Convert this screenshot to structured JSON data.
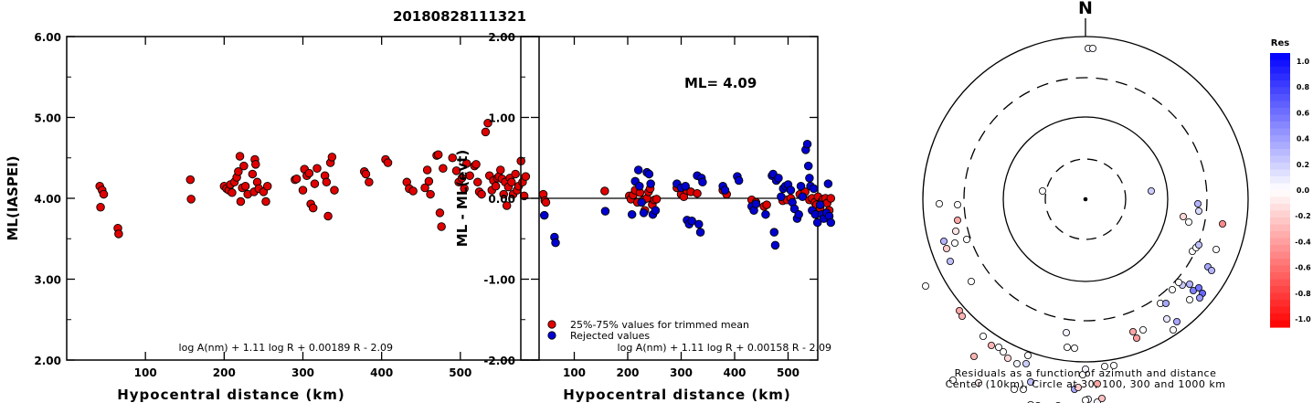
{
  "event_title": "20180828111321",
  "chart_data": [
    {
      "type": "scatter",
      "name": "magnitude-vs-distance",
      "xlabel": "Hypocentral distance (km)",
      "ylabel": "ML(IASPEI)",
      "xlim": [
        0,
        600
      ],
      "ylim": [
        2.0,
        6.0
      ],
      "xticks": [
        100,
        200,
        300,
        400,
        500
      ],
      "ytick_labels": [
        "2.00",
        "3.00",
        "4.00",
        "5.00",
        "6.00"
      ],
      "yticks": [
        2,
        3,
        4,
        5,
        6
      ],
      "formula": "log A(nm) + 1.11 log R + 0.00189 R - 2.09",
      "marker_color": "#e00000",
      "points": [
        [
          42,
          4.15
        ],
        [
          43,
          3.89
        ],
        [
          45,
          4.1
        ],
        [
          47,
          4.05
        ],
        [
          65,
          3.63
        ],
        [
          66,
          3.56
        ],
        [
          157,
          4.23
        ],
        [
          158,
          3.99
        ],
        [
          200,
          4.15
        ],
        [
          203,
          4.12
        ],
        [
          206,
          4.1
        ],
        [
          208,
          4.17
        ],
        [
          210,
          4.07
        ],
        [
          213,
          4.2
        ],
        [
          216,
          4.26
        ],
        [
          218,
          4.33
        ],
        [
          220,
          4.52
        ],
        [
          221,
          3.96
        ],
        [
          223,
          4.13
        ],
        [
          225,
          4.4
        ],
        [
          227,
          4.15
        ],
        [
          230,
          4.05
        ],
        [
          236,
          4.3
        ],
        [
          238,
          4.08
        ],
        [
          239,
          4.48
        ],
        [
          240,
          4.42
        ],
        [
          242,
          4.2
        ],
        [
          244,
          4.12
        ],
        [
          250,
          4.08
        ],
        [
          253,
          3.96
        ],
        [
          255,
          4.15
        ],
        [
          290,
          4.23
        ],
        [
          292,
          4.24
        ],
        [
          300,
          4.1
        ],
        [
          302,
          4.36
        ],
        [
          305,
          4.28
        ],
        [
          308,
          4.31
        ],
        [
          310,
          3.93
        ],
        [
          313,
          3.88
        ],
        [
          315,
          4.18
        ],
        [
          318,
          4.37
        ],
        [
          328,
          4.28
        ],
        [
          330,
          4.2
        ],
        [
          332,
          3.78
        ],
        [
          335,
          4.44
        ],
        [
          337,
          4.51
        ],
        [
          340,
          4.1
        ],
        [
          378,
          4.33
        ],
        [
          380,
          4.3
        ],
        [
          384,
          4.2
        ],
        [
          405,
          4.48
        ],
        [
          408,
          4.44
        ],
        [
          432,
          4.2
        ],
        [
          435,
          4.12
        ],
        [
          440,
          4.09
        ],
        [
          455,
          4.13
        ],
        [
          458,
          4.35
        ],
        [
          460,
          4.21
        ],
        [
          462,
          4.05
        ],
        [
          470,
          4.53
        ],
        [
          472,
          4.54
        ],
        [
          474,
          3.82
        ],
        [
          476,
          3.65
        ],
        [
          478,
          4.37
        ],
        [
          490,
          4.5
        ],
        [
          495,
          4.34
        ],
        [
          498,
          4.2
        ],
        [
          502,
          4.25
        ],
        [
          505,
          4.12
        ],
        [
          508,
          4.43
        ],
        [
          512,
          4.28
        ],
        [
          518,
          4.4
        ],
        [
          520,
          4.42
        ],
        [
          522,
          4.2
        ],
        [
          524,
          4.08
        ],
        [
          527,
          4.05
        ],
        [
          532,
          4.82
        ],
        [
          535,
          4.93
        ],
        [
          537,
          4.28
        ],
        [
          540,
          4.1
        ],
        [
          542,
          4.22
        ],
        [
          545,
          4.15
        ],
        [
          547,
          4.25
        ],
        [
          549,
          4.27
        ],
        [
          551,
          4.35
        ],
        [
          553,
          4.24
        ],
        [
          555,
          4.05
        ],
        [
          557,
          4.2
        ],
        [
          559,
          3.91
        ],
        [
          561,
          4.14
        ],
        [
          563,
          4.25
        ],
        [
          565,
          4.2
        ],
        [
          567,
          4.05
        ],
        [
          570,
          4.3
        ],
        [
          572,
          4.1
        ],
        [
          574,
          4.15
        ],
        [
          577,
          4.46
        ],
        [
          579,
          4.2
        ],
        [
          581,
          4.03
        ],
        [
          583,
          4.27
        ]
      ]
    },
    {
      "type": "scatter",
      "name": "residual-vs-distance",
      "xlabel": "Hypocentral distance (km)",
      "ylabel": "ML - ML(evt)",
      "xlim": [
        0,
        600
      ],
      "ylim": [
        -2.0,
        2.0
      ],
      "xticks": [
        100,
        200,
        300,
        400,
        500
      ],
      "yticks": [
        -2,
        -1,
        0,
        1,
        2
      ],
      "ytick_labels": [
        "-2.00",
        "-1.00",
        "0.00",
        "1.00",
        "2.00"
      ],
      "ml_label": "ML= 4.09",
      "legend": [
        "25%-75% values for trimmed mean",
        "Rejected values"
      ],
      "legend_colors": [
        "#e00000",
        "#0000d0"
      ],
      "formula": "log A(nm) + 1.11 log R + 0.00158 R - 2.09",
      "used_points": [
        [
          42,
          0.05
        ],
        [
          45,
          -0.03
        ],
        [
          47,
          -0.05
        ],
        [
          157,
          0.09
        ],
        [
          203,
          0.03
        ],
        [
          206,
          -0.01
        ],
        [
          210,
          0.04
        ],
        [
          214,
          0.1
        ],
        [
          218,
          -0.05
        ],
        [
          223,
          0.07
        ],
        [
          230,
          -0.02
        ],
        [
          232,
          -0.15
        ],
        [
          236,
          0.0
        ],
        [
          239,
          0.08
        ],
        [
          242,
          0.12
        ],
        [
          246,
          -0.08
        ],
        [
          250,
          -0.02
        ],
        [
          254,
          -0.01
        ],
        [
          292,
          0.13
        ],
        [
          300,
          0.05
        ],
        [
          305,
          0.02
        ],
        [
          310,
          0.1
        ],
        [
          318,
          0.08
        ],
        [
          330,
          0.06
        ],
        [
          378,
          0.1
        ],
        [
          385,
          0.05
        ],
        [
          432,
          -0.02
        ],
        [
          440,
          -0.05
        ],
        [
          455,
          -0.1
        ],
        [
          460,
          -0.08
        ],
        [
          490,
          -0.03
        ],
        [
          498,
          -0.02
        ],
        [
          505,
          0.0
        ],
        [
          522,
          0.05
        ],
        [
          532,
          0.08
        ],
        [
          540,
          -0.02
        ],
        [
          545,
          0.0
        ],
        [
          550,
          -0.05
        ],
        [
          553,
          -0.08
        ],
        [
          556,
          0.02
        ],
        [
          560,
          -0.12
        ],
        [
          563,
          -0.04
        ],
        [
          566,
          -0.01
        ],
        [
          570,
          0.0
        ],
        [
          573,
          -0.06
        ],
        [
          577,
          -0.15
        ],
        [
          580,
          0.0
        ]
      ],
      "rejected_points": [
        [
          44,
          -0.21
        ],
        [
          63,
          -0.48
        ],
        [
          65,
          -0.55
        ],
        [
          158,
          -0.16
        ],
        [
          208,
          -0.2
        ],
        [
          214,
          0.21
        ],
        [
          220,
          0.35
        ],
        [
          222,
          0.15
        ],
        [
          226,
          -0.05
        ],
        [
          230,
          -0.18
        ],
        [
          236,
          0.32
        ],
        [
          240,
          0.3
        ],
        [
          243,
          0.18
        ],
        [
          247,
          -0.2
        ],
        [
          252,
          -0.15
        ],
        [
          292,
          0.18
        ],
        [
          300,
          0.13
        ],
        [
          308,
          0.15
        ],
        [
          311,
          -0.27
        ],
        [
          315,
          -0.32
        ],
        [
          320,
          -0.28
        ],
        [
          330,
          0.28
        ],
        [
          333,
          -0.32
        ],
        [
          336,
          -0.42
        ],
        [
          338,
          0.25
        ],
        [
          340,
          0.2
        ],
        [
          378,
          0.15
        ],
        [
          382,
          0.1
        ],
        [
          405,
          0.27
        ],
        [
          408,
          0.22
        ],
        [
          432,
          -0.1
        ],
        [
          436,
          -0.15
        ],
        [
          440,
          -0.07
        ],
        [
          458,
          -0.2
        ],
        [
          470,
          0.28
        ],
        [
          472,
          0.3
        ],
        [
          474,
          -0.42
        ],
        [
          476,
          -0.58
        ],
        [
          478,
          0.22
        ],
        [
          482,
          0.25
        ],
        [
          487,
          0.02
        ],
        [
          491,
          0.12
        ],
        [
          495,
          0.15
        ],
        [
          500,
          0.17
        ],
        [
          505,
          0.1
        ],
        [
          508,
          -0.05
        ],
        [
          512,
          -0.13
        ],
        [
          517,
          -0.25
        ],
        [
          520,
          -0.2
        ],
        [
          524,
          0.15
        ],
        [
          527,
          0.02
        ],
        [
          533,
          0.6
        ],
        [
          536,
          0.67
        ],
        [
          538,
          0.4
        ],
        [
          540,
          0.25
        ],
        [
          542,
          0.15
        ],
        [
          545,
          -0.15
        ],
        [
          548,
          0.12
        ],
        [
          551,
          -0.2
        ],
        [
          555,
          -0.3
        ],
        [
          560,
          -0.08
        ],
        [
          563,
          -0.2
        ],
        [
          567,
          -0.25
        ],
        [
          572,
          -0.18
        ],
        [
          575,
          0.18
        ],
        [
          577,
          -0.22
        ],
        [
          580,
          -0.3
        ]
      ]
    },
    {
      "type": "scatter",
      "name": "azimuth-distance-residual-map",
      "north_label": "N",
      "caption_line1": "Residuals as a function of azimuth and distance",
      "caption_line2": "Center (10km), Circle at 30, 100, 300 and 1000 km",
      "colorbar_title": "Res",
      "colorbar_ticks": [
        "1.0",
        "0.8",
        "0.6",
        "0.4",
        "0.2",
        "0.0",
        "-0.2",
        "-0.4",
        "-0.6",
        "-0.8",
        "-1.0"
      ],
      "station_points": [
        [
          3,
          165,
          0.05
        ],
        [
          8,
          165,
          0.02
        ],
        [
          -47,
          9,
          0.0
        ],
        [
          72,
          9,
          0.2
        ],
        [
          -155,
          -46,
          0.3
        ],
        [
          -152,
          -54,
          -0.2
        ],
        [
          -160,
          -5,
          0.0
        ],
        [
          -140,
          -6,
          0.0
        ],
        [
          -140,
          -23,
          -0.35
        ],
        [
          -142,
          -35,
          -0.1
        ],
        [
          -130,
          -44,
          0.0
        ],
        [
          -143,
          -48,
          0.0
        ],
        [
          -148,
          -68,
          0.25
        ],
        [
          -175,
          -95,
          0.0
        ],
        [
          -125,
          -90,
          0.0
        ],
        [
          -138,
          -122,
          -0.35
        ],
        [
          -135,
          -128,
          -0.3
        ],
        [
          -122,
          -172,
          -0.3
        ],
        [
          -117,
          -201,
          -0.05
        ],
        [
          -112,
          -150,
          0.0
        ],
        [
          -145,
          -198,
          0.0
        ],
        [
          -103,
          -160,
          -0.3
        ],
        [
          -95,
          -162,
          0.0
        ],
        [
          -90,
          -167,
          0.0
        ],
        [
          -85,
          -174,
          -0.15
        ],
        [
          -78,
          -208,
          0.0
        ],
        [
          -68,
          -208,
          0.0
        ],
        [
          -63,
          -171,
          0.0
        ],
        [
          -75,
          -180,
          0.05
        ],
        [
          -65,
          -180,
          0.2
        ],
        [
          -60,
          -200,
          0.25
        ],
        [
          -60,
          -225,
          0.0
        ],
        [
          -52,
          -226,
          0.35
        ],
        [
          -46,
          -235,
          0.6
        ],
        [
          -41,
          -229,
          0.7
        ],
        [
          -37,
          -235,
          0.55
        ],
        [
          -30,
          -226,
          0.1
        ],
        [
          -28,
          -233,
          0.0
        ],
        [
          -22,
          -231,
          -0.15
        ],
        [
          -12,
          -208,
          0.35
        ],
        [
          -8,
          -206,
          -0.2
        ],
        [
          -3,
          -192,
          0.0
        ],
        [
          0,
          -186,
          0.05
        ],
        [
          -12,
          -163,
          0.0
        ],
        [
          -20,
          -162,
          0.0
        ],
        [
          -21,
          -146,
          0.05
        ],
        [
          3,
          -219,
          0.05
        ],
        [
          13,
          -222,
          0.05
        ],
        [
          18,
          -218,
          -0.25
        ],
        [
          0,
          -220,
          0.0
        ],
        [
          13,
          -202,
          -0.35
        ],
        [
          -42,
          -235,
          0.5
        ],
        [
          -50,
          -228,
          0.0
        ],
        [
          -53,
          -232,
          0.0
        ],
        [
          21,
          -183,
          0.0
        ],
        [
          31,
          -182,
          0.0
        ],
        [
          52,
          -145,
          -0.35
        ],
        [
          56,
          -152,
          -0.4
        ],
        [
          63,
          -143,
          0.0
        ],
        [
          82,
          -114,
          0.0
        ],
        [
          88,
          -114,
          0.35
        ],
        [
          96,
          -143,
          0.0
        ],
        [
          100,
          -134,
          0.35
        ],
        [
          106,
          -94,
          0.2
        ],
        [
          114,
          -93,
          0.3
        ],
        [
          114,
          -110,
          0.0
        ],
        [
          118,
          -100,
          0.5
        ],
        [
          124,
          -97,
          0.55
        ],
        [
          128,
          -103,
          0.6
        ],
        [
          125,
          -108,
          0.4
        ],
        [
          89,
          -131,
          0.1
        ],
        [
          95,
          -99,
          0.0
        ],
        [
          102,
          -91,
          0.0
        ],
        [
          117,
          -57,
          0.0
        ],
        [
          134,
          -74,
          0.35
        ],
        [
          138,
          -78,
          0.3
        ],
        [
          143,
          -55,
          0.0
        ],
        [
          121,
          -53,
          0.0
        ],
        [
          124,
          -50,
          0.25
        ],
        [
          124,
          -13,
          0.15
        ],
        [
          123,
          -5,
          0.3
        ],
        [
          113,
          -25,
          0.0
        ],
        [
          107,
          -19,
          -0.15
        ],
        [
          150,
          -27,
          -0.45
        ]
      ]
    }
  ]
}
